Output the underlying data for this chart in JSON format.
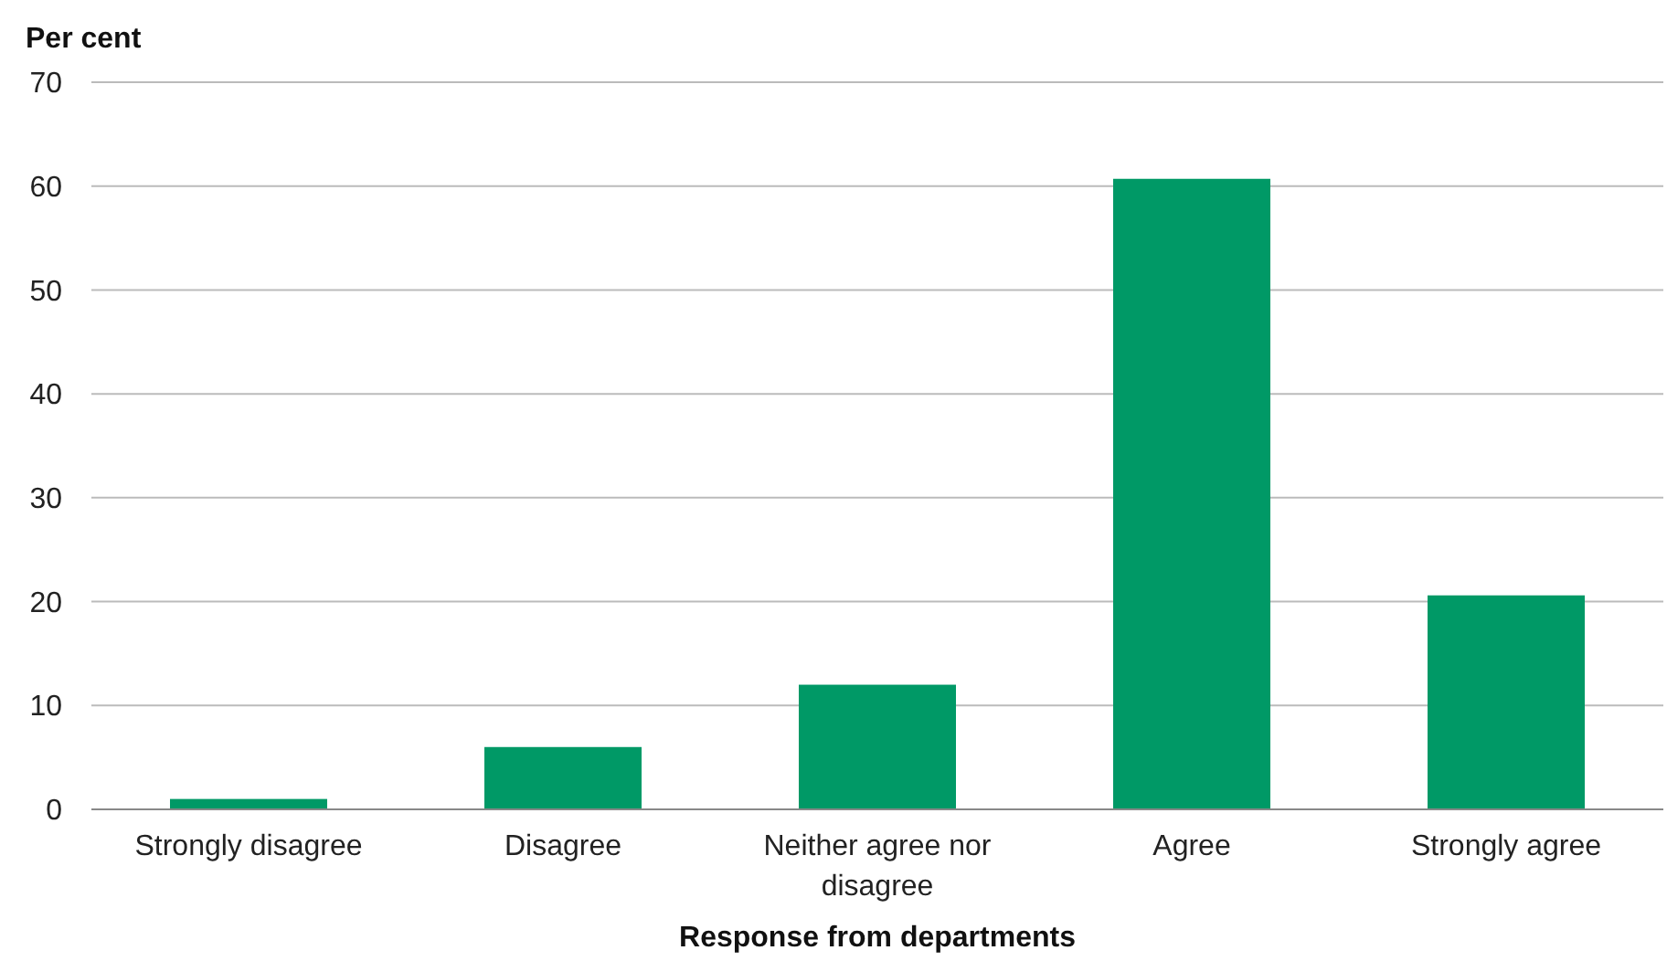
{
  "chart_data": {
    "type": "bar",
    "ylabel": "Per cent",
    "xlabel": "Response from departments",
    "categories": [
      "Strongly disagree",
      "Disagree",
      "Neither agree nor disagree",
      "Agree",
      "Strongly agree"
    ],
    "values": [
      1,
      6,
      12,
      60.7,
      20.6
    ],
    "color": "#009966",
    "ylim": [
      0,
      70
    ],
    "yticks": [
      0,
      10,
      20,
      30,
      40,
      50,
      60,
      70
    ],
    "grid": "y"
  }
}
